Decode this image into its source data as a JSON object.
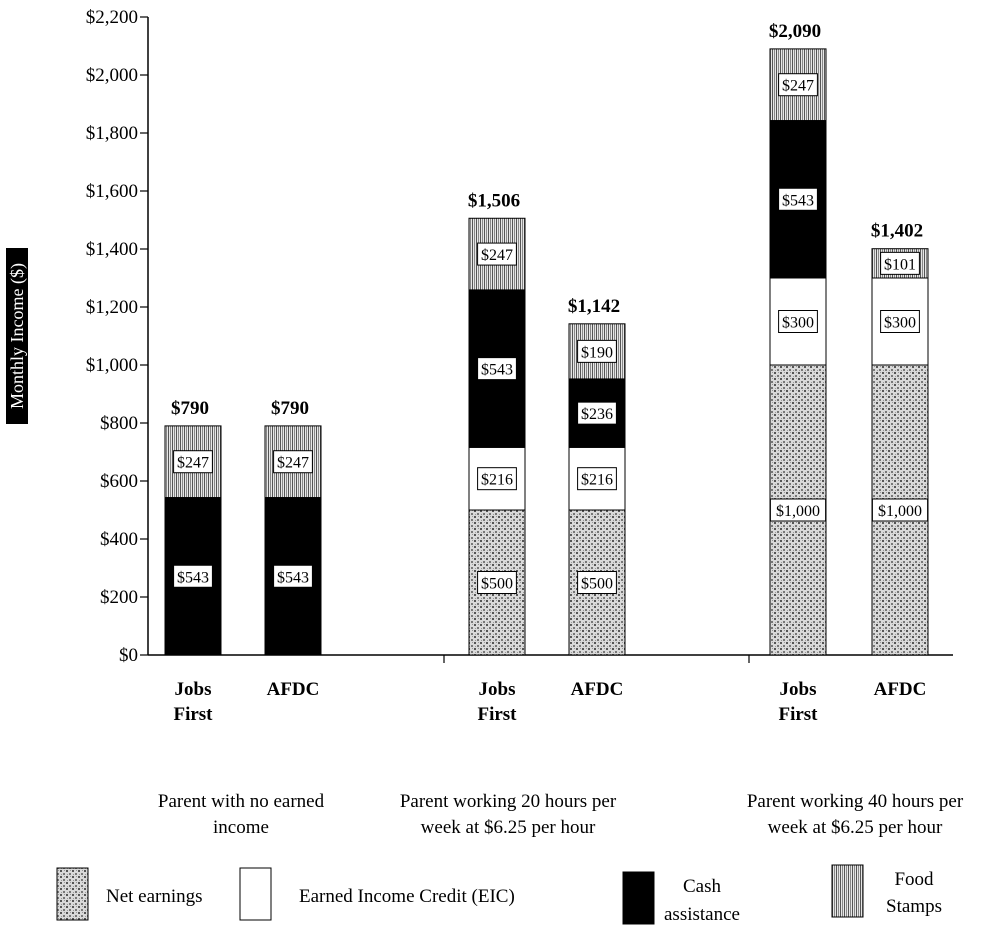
{
  "chart_data": {
    "type": "bar",
    "stacked": true,
    "ylabel": "Monthly Income ($)",
    "ylim": [
      0,
      2200
    ],
    "yticks": [
      "$0",
      "$200",
      "$400",
      "$600",
      "$800",
      "$1,000",
      "$1,200",
      "$1,400",
      "$1,600",
      "$1,800",
      "$2,000",
      "$2,200"
    ],
    "legend_position": "bottom",
    "groups": [
      {
        "label": [
          "Parent with no earned",
          "income"
        ],
        "bars": [
          0,
          1
        ]
      },
      {
        "label": [
          "Parent working 20 hours per",
          "week at $6.25 per hour"
        ],
        "bars": [
          2,
          3
        ]
      },
      {
        "label": [
          "Parent working 40 hours per",
          "week at $6.25 per hour"
        ],
        "bars": [
          4,
          5
        ]
      }
    ],
    "categories": [
      [
        "Jobs",
        "First"
      ],
      [
        "AFDC"
      ],
      [
        "Jobs",
        "First"
      ],
      [
        "AFDC"
      ],
      [
        "Jobs",
        "First"
      ],
      [
        "AFDC"
      ]
    ],
    "totals": [
      "$790",
      "$790",
      "$1,506",
      "$1,142",
      "$2,090",
      "$1,402"
    ],
    "series": [
      {
        "name": "Net earnings",
        "values": [
          0,
          0,
          500,
          500,
          1000,
          1000
        ],
        "labels": [
          "",
          "",
          "$500",
          "$500",
          "$1,000",
          "$1,000"
        ]
      },
      {
        "name": "Earned Income Credit (EIC)",
        "values": [
          0,
          0,
          216,
          216,
          300,
          300
        ],
        "labels": [
          "",
          "",
          "$216",
          "$216",
          "$300",
          "$300"
        ]
      },
      {
        "name": "Cash assistance",
        "values": [
          543,
          543,
          543,
          236,
          543,
          0
        ],
        "labels": [
          "$543",
          "$543",
          "$543",
          "$236",
          "$543",
          ""
        ]
      },
      {
        "name": "Food Stamps",
        "values": [
          247,
          247,
          247,
          190,
          247,
          101
        ],
        "labels": [
          "$247",
          "$247",
          "$247",
          "$190",
          "$247",
          "$101"
        ]
      }
    ]
  },
  "legend": [
    {
      "text": [
        "Net earnings"
      ]
    },
    {
      "text": [
        "Earned Income Credit (EIC)"
      ]
    },
    {
      "text": [
        "Cash",
        "assistance"
      ]
    },
    {
      "text": [
        "Food",
        "Stamps"
      ]
    }
  ]
}
